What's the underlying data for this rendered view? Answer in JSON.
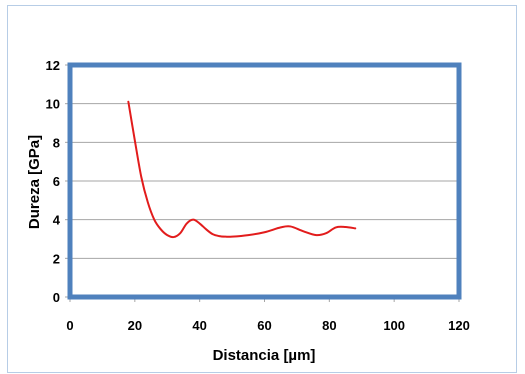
{
  "chart_data": {
    "type": "line",
    "title": "",
    "xlabel": "Distancia [µm]",
    "ylabel": "Dureza [GPa]",
    "xlim": [
      0,
      120
    ],
    "ylim": [
      0,
      12
    ],
    "x_ticks": [
      "0",
      "20",
      "40",
      "60",
      "80",
      "100",
      "120"
    ],
    "y_ticks": [
      "0",
      "2",
      "4",
      "6",
      "8",
      "10",
      "12"
    ],
    "grid": true,
    "legend": "none",
    "colors": {
      "line": "#e21c1c",
      "plot_border": "#4f81bd",
      "grid": "#a6a6a6",
      "frame": "#b7cde6"
    },
    "series": [
      {
        "x": [
          18,
          20,
          22,
          24,
          26,
          28,
          30,
          32,
          34,
          36,
          38,
          40,
          42,
          44,
          46,
          48,
          50,
          55,
          60,
          65,
          68,
          72,
          76,
          79,
          82,
          85,
          88
        ],
        "y": [
          10.1,
          8.1,
          6.2,
          4.9,
          4.0,
          3.5,
          3.2,
          3.1,
          3.3,
          3.8,
          4.0,
          3.8,
          3.5,
          3.25,
          3.15,
          3.12,
          3.12,
          3.2,
          3.35,
          3.6,
          3.65,
          3.4,
          3.2,
          3.3,
          3.6,
          3.62,
          3.55
        ]
      }
    ]
  }
}
